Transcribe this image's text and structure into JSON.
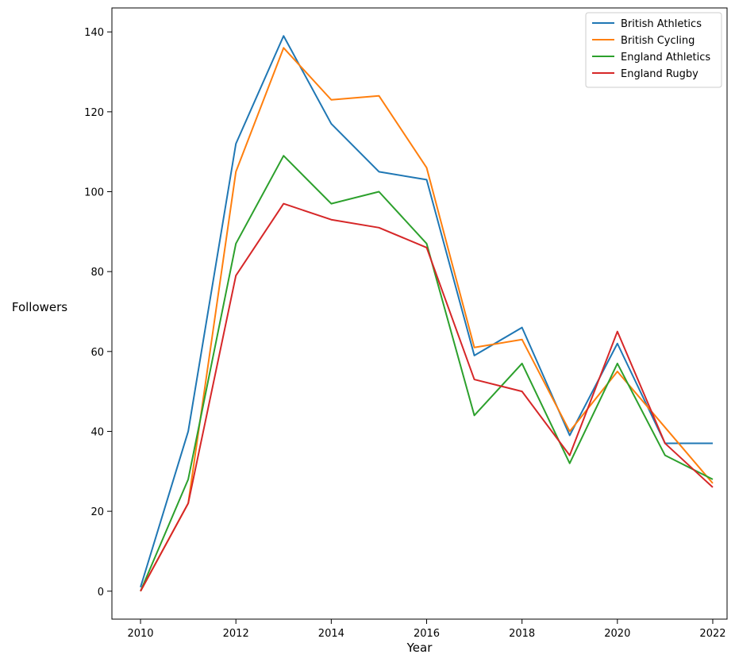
{
  "chart_data": {
    "type": "line",
    "title": "",
    "xlabel": "Year",
    "ylabel": "Followers",
    "x": [
      2010,
      2011,
      2012,
      2013,
      2014,
      2015,
      2016,
      2017,
      2018,
      2019,
      2020,
      2021,
      2022
    ],
    "xlim": [
      2009.4,
      2022.3
    ],
    "ylim": [
      -7,
      146
    ],
    "xticks": [
      2010,
      2012,
      2014,
      2016,
      2018,
      2020,
      2022
    ],
    "yticks": [
      0,
      20,
      40,
      60,
      80,
      100,
      120,
      140
    ],
    "grid": false,
    "legend_position": "top-right",
    "series": [
      {
        "name": "British Athletics",
        "color": "#1f77b4",
        "values": [
          1,
          40,
          112,
          139,
          117,
          105,
          103,
          59,
          66,
          39,
          62,
          37,
          37
        ]
      },
      {
        "name": "British Cycling",
        "color": "#ff7f0e",
        "values": [
          0,
          22,
          105,
          136,
          123,
          124,
          106,
          61,
          63,
          40,
          55,
          41,
          27
        ]
      },
      {
        "name": "England Athletics",
        "color": "#2ca02c",
        "values": [
          0,
          28,
          87,
          109,
          97,
          100,
          87,
          44,
          57,
          32,
          57,
          34,
          28
        ]
      },
      {
        "name": "England Rugby",
        "color": "#d62728",
        "values": [
          0,
          22,
          79,
          97,
          93,
          91,
          86,
          53,
          50,
          34,
          65,
          37,
          26
        ]
      }
    ]
  }
}
